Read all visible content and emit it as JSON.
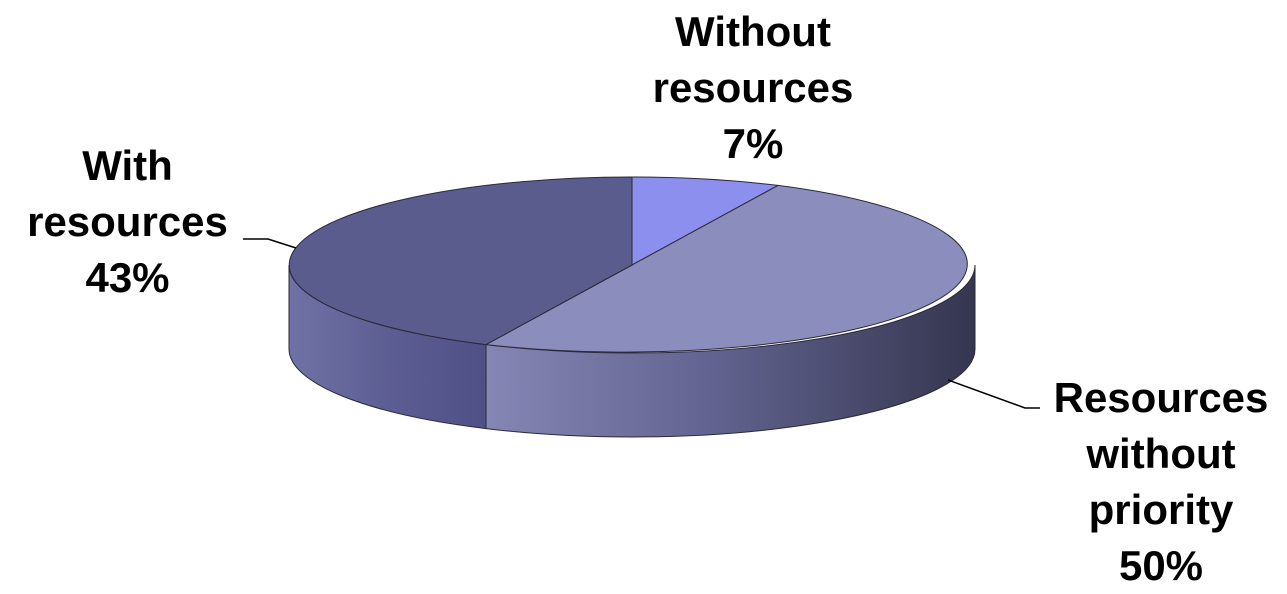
{
  "chart_data": {
    "type": "pie",
    "style": "3d",
    "slices": [
      {
        "label_lines": [
          "Without",
          "resources"
        ],
        "value": 7,
        "value_label": "7%",
        "color": "#8C8FEE"
      },
      {
        "label_lines": [
          "Resources",
          "without",
          "priority"
        ],
        "value": 50,
        "value_label": "50%",
        "color": "#8B8DBD"
      },
      {
        "label_lines": [
          "With",
          "resources"
        ],
        "value": 43,
        "value_label": "43%",
        "color": "#5B5C8E"
      }
    ],
    "legend": "none"
  }
}
